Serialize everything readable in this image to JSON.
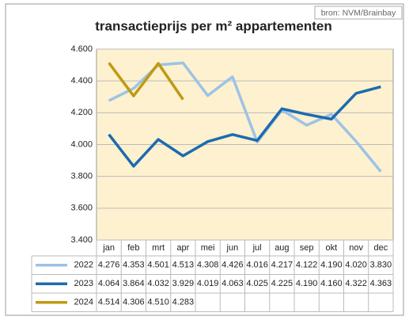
{
  "chart_data": {
    "type": "line",
    "title": "transactieprijs per m² appartementen",
    "source": "bron: NVM/Brainbay",
    "categories": [
      "jan",
      "feb",
      "mrt",
      "apr",
      "mei",
      "jun",
      "jul",
      "aug",
      "sep",
      "okt",
      "nov",
      "dec"
    ],
    "series": [
      {
        "name": "2022",
        "color": "#9dc3e6",
        "values": [
          4276,
          4353,
          4501,
          4513,
          4308,
          4426,
          4016,
          4217,
          4122,
          4190,
          4020,
          3830
        ],
        "value_labels": [
          "4.276",
          "4.353",
          "4.501",
          "4.513",
          "4.308",
          "4.426",
          "4.016",
          "4.217",
          "4.122",
          "4.190",
          "4.020",
          "3.830"
        ]
      },
      {
        "name": "2023",
        "color": "#1c6bb0",
        "values": [
          4064,
          3864,
          4032,
          3929,
          4019,
          4063,
          4025,
          4225,
          4190,
          4160,
          4322,
          4363
        ],
        "value_labels": [
          "4.064",
          "3.864",
          "4.032",
          "3.929",
          "4.019",
          "4.063",
          "4.025",
          "4.225",
          "4.190",
          "4.160",
          "4.322",
          "4.363"
        ]
      },
      {
        "name": "2024",
        "color": "#bf9a12",
        "values": [
          4514,
          4306,
          4510,
          4283,
          null,
          null,
          null,
          null,
          null,
          null,
          null,
          null
        ],
        "value_labels": [
          "4.514",
          "4.306",
          "4.510",
          "4.283",
          null,
          null,
          null,
          null,
          null,
          null,
          null,
          null
        ]
      }
    ],
    "ylim": [
      3400,
      4600
    ],
    "yticks": [
      {
        "value": 3400,
        "label": "3.400"
      },
      {
        "value": 3600,
        "label": "3.600"
      },
      {
        "value": 3800,
        "label": "3.800"
      },
      {
        "value": 4000,
        "label": "4.000"
      },
      {
        "value": 4200,
        "label": "4.200"
      },
      {
        "value": 4400,
        "label": "4.400"
      },
      {
        "value": 4600,
        "label": "4.600"
      }
    ],
    "grid": true,
    "plot_background": "#fdf1cf"
  }
}
